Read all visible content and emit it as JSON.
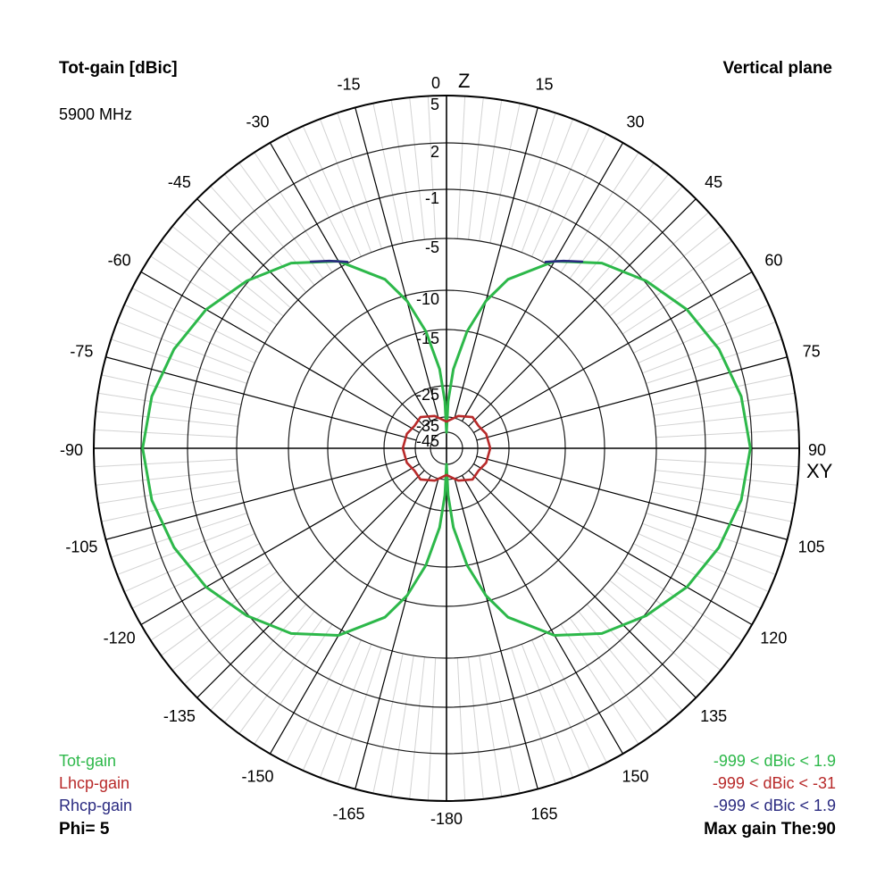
{
  "chart_data": {
    "type": "polar",
    "title": "Tot-gain [dBic]",
    "frequency": "5900 MHz",
    "plane": "Vertical plane",
    "axis_z": "Z",
    "axis_xy": "XY",
    "angle_labels": [
      {
        "deg": 0,
        "text": "0"
      },
      {
        "deg": 15,
        "text": "15"
      },
      {
        "deg": 30,
        "text": "30"
      },
      {
        "deg": 45,
        "text": "45"
      },
      {
        "deg": 60,
        "text": "60"
      },
      {
        "deg": 75,
        "text": "75"
      },
      {
        "deg": 90,
        "text": "90"
      },
      {
        "deg": 105,
        "text": "105"
      },
      {
        "deg": 120,
        "text": "120"
      },
      {
        "deg": 135,
        "text": "135"
      },
      {
        "deg": 150,
        "text": "150"
      },
      {
        "deg": 165,
        "text": "165"
      },
      {
        "deg": 180,
        "text": "-180"
      },
      {
        "deg": 195,
        "text": "-165"
      },
      {
        "deg": 210,
        "text": "-150"
      },
      {
        "deg": 225,
        "text": "-135"
      },
      {
        "deg": 240,
        "text": "-120"
      },
      {
        "deg": 255,
        "text": "-105"
      },
      {
        "deg": 270,
        "text": "-90"
      },
      {
        "deg": 285,
        "text": "-75"
      },
      {
        "deg": 300,
        "text": "-60"
      },
      {
        "deg": 315,
        "text": "-45"
      },
      {
        "deg": 330,
        "text": "-30"
      },
      {
        "deg": 345,
        "text": "-15"
      }
    ],
    "radial_rings_dB": [
      5,
      2,
      -1,
      -5,
      -10,
      -15,
      -25,
      -35,
      -45
    ],
    "radial_labels": [
      "5",
      "2",
      "-1",
      "-5",
      "-10",
      "-15",
      "-25",
      "-35",
      "-45"
    ],
    "series": [
      {
        "name": "Tot-gain",
        "color": "#2db84a",
        "angles_deg": [
          0,
          2,
          5,
          10,
          15,
          20,
          30,
          40,
          50,
          60,
          70,
          80,
          90,
          100,
          110,
          120,
          130,
          140,
          150,
          160,
          165,
          170,
          175,
          178,
          180
        ],
        "gain_dBic": [
          -45,
          -30,
          -22,
          -15,
          -10.7,
          -7.9,
          -4.5,
          -2.4,
          -0.9,
          0.2,
          1.0,
          1.6,
          1.9,
          1.6,
          1.0,
          0.2,
          -0.9,
          -2.4,
          -4.5,
          -7.9,
          -10.7,
          -15,
          -22,
          -30,
          -45
        ]
      },
      {
        "name": "Lhcp-gain",
        "color": "#b82a2a",
        "angles_deg": [
          0,
          20,
          40,
          55,
          70,
          90,
          110,
          125,
          140,
          160,
          180
        ],
        "gain_dBic": [
          -38,
          -34,
          -32,
          -32.5,
          -31.5,
          -31,
          -31.5,
          -32.5,
          -32,
          -34,
          -38
        ]
      },
      {
        "name": "Rhcp-gain",
        "color": "#2a2a80",
        "angles_deg": [
          28,
          32,
          36
        ],
        "gain_dBic": [
          -4.9,
          -4.1,
          -3.3
        ]
      }
    ],
    "legend": [
      {
        "name": "Tot-gain",
        "range": "-999 < dBic < 1.9"
      },
      {
        "name": "Lhcp-gain",
        "range": "-999 < dBic < -31"
      },
      {
        "name": "Rhcp-gain",
        "range": "-999 < dBic < 1.9"
      }
    ],
    "phi": "Phi= 5",
    "max_gain": "Max gain The:90"
  }
}
